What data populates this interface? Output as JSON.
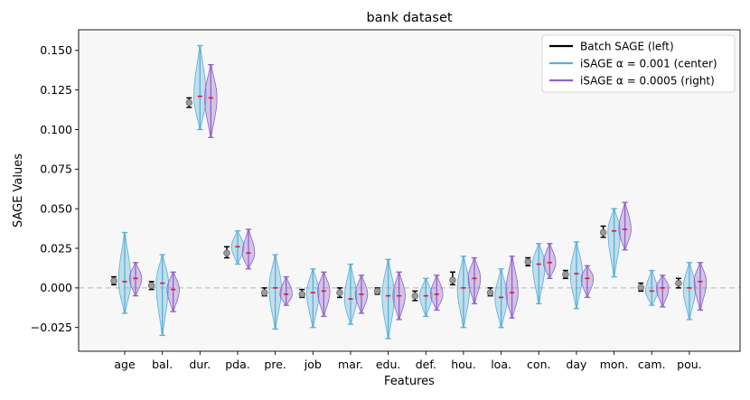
{
  "chart_data": {
    "type": "violin",
    "title": "bank dataset",
    "xlabel": "Features",
    "ylabel": "SAGE Values",
    "ylim": [
      -0.04,
      0.163
    ],
    "yticks": [
      -0.025,
      0.0,
      0.025,
      0.05,
      0.075,
      0.1,
      0.125,
      0.15
    ],
    "ytick_labels": [
      "−0.025",
      "0.000",
      "0.025",
      "0.050",
      "0.075",
      "0.100",
      "0.125",
      "0.150"
    ],
    "reference_line": 0.0,
    "legend_position": "top-right",
    "categories": [
      "age",
      "bal.",
      "dur.",
      "pda.",
      "pre.",
      "job",
      "mar.",
      "edu.",
      "def.",
      "hou.",
      "loa.",
      "con.",
      "day",
      "mon.",
      "cam.",
      "pou."
    ],
    "batch_sage": {
      "name": "Batch SAGE (left)",
      "color": "#000000",
      "mean": [
        0.0045,
        0.0015,
        0.117,
        0.022,
        -0.003,
        -0.004,
        -0.003,
        -0.002,
        -0.005,
        0.005,
        -0.003,
        0.0165,
        0.0085,
        0.035,
        0.0003,
        0.003
      ],
      "low": [
        0.002,
        -0.001,
        0.114,
        0.019,
        -0.005,
        -0.006,
        -0.006,
        -0.004,
        -0.008,
        0.002,
        -0.005,
        0.014,
        0.006,
        0.032,
        -0.002,
        0.0
      ],
      "high": [
        0.007,
        0.004,
        0.12,
        0.026,
        0.0,
        -0.001,
        0.0,
        0.0,
        -0.002,
        0.01,
        0.0,
        0.019,
        0.011,
        0.039,
        0.003,
        0.006
      ]
    },
    "isage_001": {
      "name": "iSAGE α = 0.001 (center)",
      "color": "#5aafd8",
      "median": [
        0.004,
        0.003,
        0.121,
        0.026,
        0.0,
        -0.003,
        -0.007,
        -0.005,
        -0.005,
        0.0,
        -0.006,
        0.015,
        0.009,
        0.036,
        -0.002,
        0.0
      ],
      "min": [
        -0.016,
        -0.03,
        0.1,
        0.015,
        -0.026,
        -0.025,
        -0.023,
        -0.032,
        -0.018,
        -0.025,
        -0.025,
        -0.01,
        -0.013,
        0.007,
        -0.011,
        -0.02
      ],
      "max": [
        0.035,
        0.021,
        0.153,
        0.036,
        0.021,
        0.012,
        0.015,
        0.018,
        0.006,
        0.02,
        0.012,
        0.028,
        0.029,
        0.05,
        0.011,
        0.016
      ]
    },
    "isage_0005": {
      "name": "iSAGE α = 0.0005 (right)",
      "color": "#8f62c8",
      "median": [
        0.006,
        -0.001,
        0.12,
        0.022,
        -0.004,
        -0.002,
        -0.004,
        -0.005,
        -0.004,
        0.006,
        -0.003,
        0.016,
        0.006,
        0.037,
        0.0,
        0.004
      ],
      "min": [
        -0.005,
        -0.015,
        0.095,
        0.012,
        -0.011,
        -0.018,
        -0.016,
        -0.02,
        -0.014,
        -0.01,
        -0.019,
        0.006,
        -0.006,
        0.024,
        -0.012,
        -0.014
      ],
      "max": [
        0.016,
        0.01,
        0.141,
        0.037,
        0.007,
        0.01,
        0.008,
        0.01,
        0.008,
        0.019,
        0.02,
        0.028,
        0.014,
        0.054,
        0.008,
        0.016
      ]
    }
  }
}
